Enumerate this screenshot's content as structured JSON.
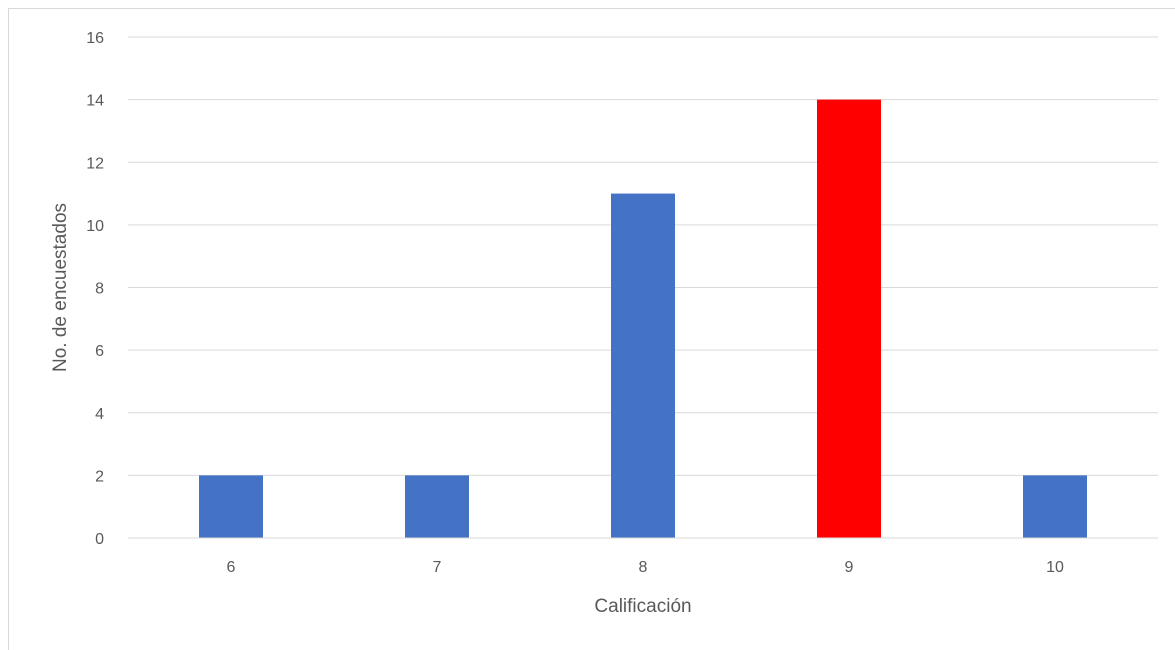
{
  "chart_data": {
    "type": "bar",
    "title": "",
    "xlabel": "Calificación",
    "ylabel": "No. de encuestados",
    "categories": [
      "6",
      "7",
      "8",
      "9",
      "10"
    ],
    "values": [
      2,
      2,
      11,
      14,
      2
    ],
    "bar_colors": [
      "#4472C4",
      "#4472C4",
      "#4472C4",
      "#FF0000",
      "#4472C4"
    ],
    "ylim": [
      0,
      16
    ],
    "yticks": [
      0,
      2,
      4,
      6,
      8,
      10,
      12,
      14,
      16
    ],
    "grid": true,
    "legend": "none",
    "colors": {
      "gridline": "#D9D9D9",
      "axis_line": "#D9D9D9",
      "border": "#D9D9D9",
      "text": "#595959"
    }
  }
}
